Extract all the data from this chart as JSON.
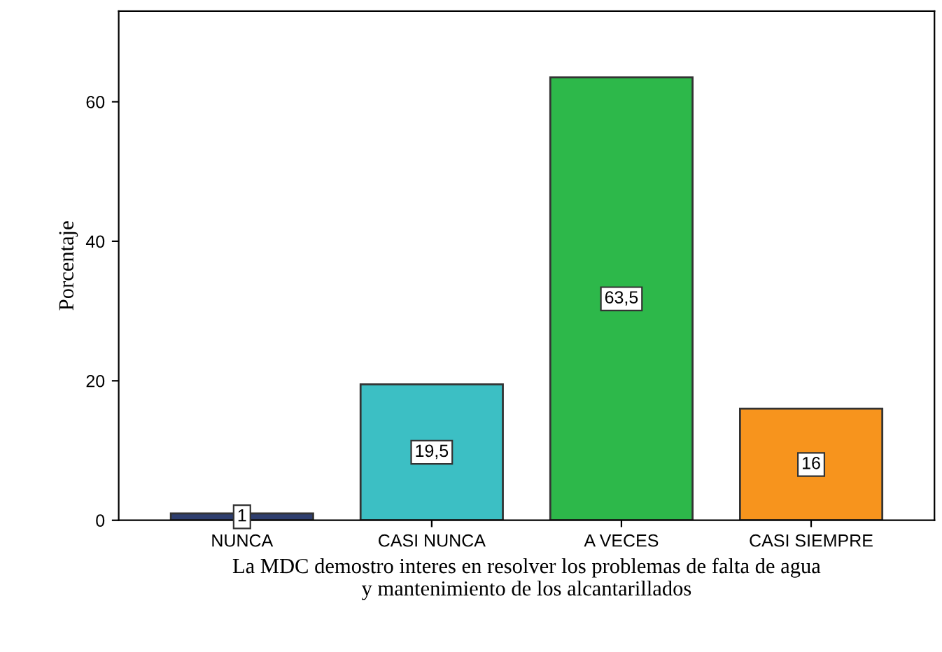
{
  "chart_data": {
    "type": "bar",
    "xlabel": "La MDC demostro interes en resolver los problemas de falta de agua\ny mantenimiento de los alcantarillados",
    "ylabel": "Porcentaje",
    "categories": [
      "NUNCA",
      "CASI NUNCA",
      "A VECES",
      "CASI SIEMPRE"
    ],
    "values": [
      1,
      19.5,
      63.5,
      16
    ],
    "value_labels": [
      "1",
      "19,5",
      "63,5",
      "16"
    ],
    "colors": [
      "#2e3e6e",
      "#3cbfc4",
      "#2db84a",
      "#f7941d"
    ],
    "ylim": [
      0,
      73
    ],
    "yticks": [
      0,
      20,
      40,
      60
    ],
    "grid": false,
    "legend": false
  }
}
